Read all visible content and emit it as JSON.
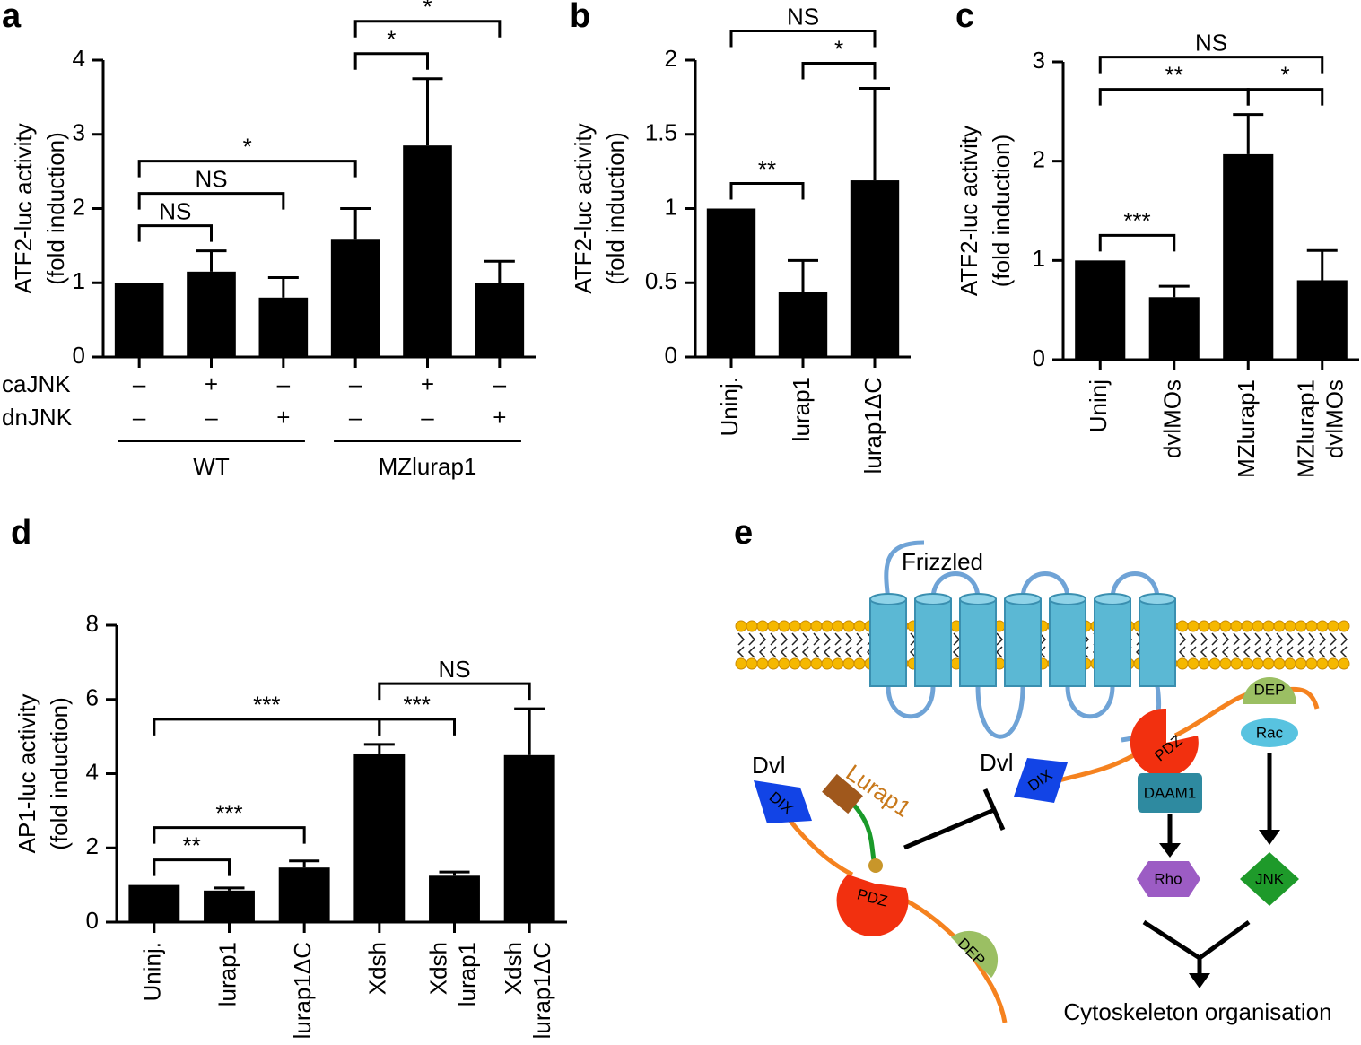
{
  "chart_data": [
    {
      "type": "bar",
      "label": "a",
      "ylabel": [
        "ATF2-luc activity",
        "(fold induction)"
      ],
      "color": "#000000",
      "values": [
        1,
        1.15,
        0.8,
        1.58,
        2.85,
        1.0
      ],
      "errors": [
        0,
        0.28,
        0.27,
        0.42,
        0.9,
        0.29
      ],
      "ylim": [
        0,
        4
      ],
      "yticks": [
        0,
        1,
        2,
        3,
        4
      ],
      "rows": [
        {
          "name": "caJNK",
          "marks": [
            "–",
            "+",
            "–",
            "–",
            "+",
            "–"
          ]
        },
        {
          "name": "dnJNK",
          "marks": [
            "–",
            "–",
            "+",
            "–",
            "–",
            "+"
          ]
        }
      ],
      "groups": [
        {
          "label": "WT",
          "from": 0,
          "to": 2
        },
        {
          "label": "MZlurap1",
          "from": 3,
          "to": 5
        }
      ],
      "brackets": [
        {
          "label": "NS",
          "from": 0,
          "to": 1
        },
        {
          "label": "NS",
          "from": 0,
          "to": 2
        },
        {
          "label": "*",
          "from": 0,
          "to": 3
        },
        {
          "label": "*",
          "from": 3,
          "to": 4
        },
        {
          "label": "*",
          "from": 3,
          "to": 5
        }
      ]
    },
    {
      "type": "bar",
      "label": "b",
      "ylabel": [
        "ATF2-luc activity",
        "(fold induction)"
      ],
      "color": "#000000",
      "categories": [
        "Uninj.",
        "lurap1",
        "lurap1ΔC"
      ],
      "values": [
        1,
        0.44,
        1.19
      ],
      "errors": [
        0,
        0.21,
        0.62
      ],
      "ylim": [
        0,
        2
      ],
      "yticks": [
        0,
        0.5,
        1,
        1.5,
        2
      ],
      "brackets": [
        {
          "label": "**",
          "from": 0,
          "to": 1
        },
        {
          "label": "*",
          "from": 1,
          "to": 2
        },
        {
          "label": "NS",
          "from": 0,
          "to": 2
        }
      ]
    },
    {
      "type": "bar",
      "label": "c",
      "ylabel": [
        "ATF2-luc activity",
        "(fold induction)"
      ],
      "color": "#000000",
      "categories": [
        "Uninj",
        "dvlMOs",
        "MZlurap1",
        [
          "MZlurap1",
          "dvlMOs"
        ]
      ],
      "values": [
        1,
        0.63,
        2.07,
        0.8
      ],
      "errors": [
        0,
        0.11,
        0.4,
        0.3
      ],
      "ylim": [
        0,
        3
      ],
      "yticks": [
        0,
        1,
        2,
        3
      ],
      "brackets": [
        {
          "label": "***",
          "from": 0,
          "to": 1
        },
        {
          "label": "**",
          "from": 0,
          "to": 2
        },
        {
          "label": "*",
          "from": 2,
          "to": 3
        },
        {
          "label": "NS",
          "from": 0,
          "to": 3
        }
      ]
    },
    {
      "type": "bar",
      "label": "d",
      "ylabel": [
        "AP1-luc activity",
        "(fold induction)"
      ],
      "color": "#000000",
      "categories": [
        "Uninj.",
        "lurap1",
        "lurap1ΔC",
        "Xdsh",
        [
          "Xdsh",
          "lurap1"
        ],
        [
          "Xdsh",
          "lurap1ΔC"
        ]
      ],
      "values": [
        1,
        0.85,
        1.47,
        4.52,
        1.25,
        4.5
      ],
      "errors": [
        0,
        0.07,
        0.18,
        0.27,
        0.1,
        1.25
      ],
      "ylim": [
        0,
        8
      ],
      "yticks": [
        0,
        2,
        4,
        6,
        8
      ],
      "brackets": [
        {
          "label": "**",
          "from": 0,
          "to": 1
        },
        {
          "label": "***",
          "from": 0,
          "to": 2
        },
        {
          "label": "***",
          "from": 0,
          "to": 3
        },
        {
          "label": "***",
          "from": 3,
          "to": 4
        },
        {
          "label": "NS",
          "from": 3,
          "to": 5
        }
      ]
    }
  ],
  "diagram": {
    "label": "e",
    "receptor": "Frizzled",
    "dvl_left": "Dvl",
    "dvl_right": "Dvl",
    "lurap1": "Lurap1",
    "domains": [
      "DIX",
      "PDZ",
      "DEP",
      "DIX",
      "PDZ",
      "DEP"
    ],
    "rac": "Rac",
    "daam1": "DAAM1",
    "rho": "Rho",
    "jnk": "JNK",
    "output": "Cytoskeleton organisation"
  }
}
